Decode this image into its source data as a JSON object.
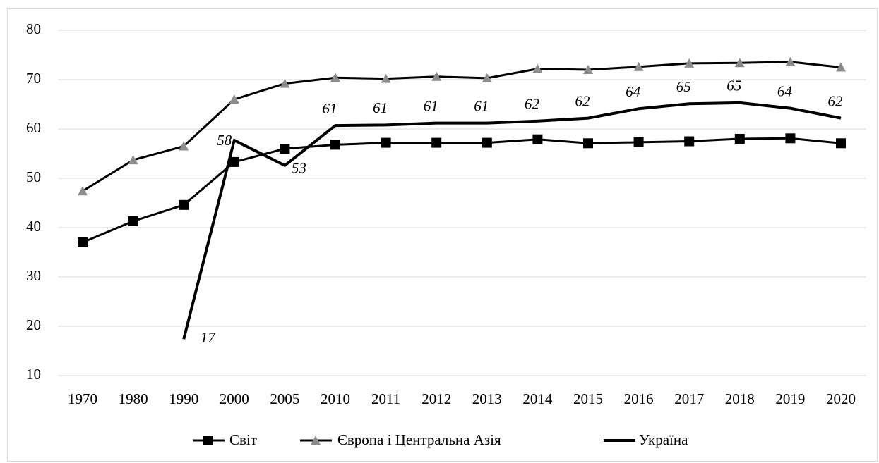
{
  "chart_data": {
    "type": "line",
    "categories": [
      "1970",
      "1980",
      "1990",
      "2000",
      "2005",
      "2010",
      "2011",
      "2012",
      "2013",
      "2014",
      "2015",
      "2016",
      "2017",
      "2018",
      "2019",
      "2020"
    ],
    "series": [
      {
        "name": "Світ",
        "color": "#000000",
        "marker": "square",
        "values": [
          37,
          41.3,
          44.6,
          53.3,
          56,
          56.8,
          57.2,
          57.2,
          57.2,
          57.9,
          57.1,
          57.3,
          57.5,
          58,
          58.1,
          57.1
        ]
      },
      {
        "name": "Європа і Центральна  Азія",
        "color": "#8c8c8c",
        "marker": "triangle",
        "values": [
          47.4,
          53.7,
          56.5,
          66,
          69.2,
          70.4,
          70.2,
          70.6,
          70.3,
          72.2,
          72,
          72.6,
          73.3,
          73.4,
          73.6,
          72.5
        ]
      },
      {
        "name": "Україна",
        "color": "#000000",
        "marker": "none",
        "values": [
          null,
          null,
          17.4,
          57.7,
          52.6,
          60.7,
          60.8,
          61.2,
          61.2,
          61.6,
          62.2,
          64.1,
          65.1,
          65.3,
          64.2,
          62.2
        ],
        "value_labels": [
          null,
          null,
          "17",
          "58",
          "53",
          "61",
          "61",
          "61",
          "61",
          "62",
          "62",
          "64",
          "65",
          "65",
          "64",
          "62"
        ]
      }
    ],
    "ylim": [
      10,
      80
    ],
    "yticks": [
      10,
      20,
      30,
      40,
      50,
      60,
      70,
      80
    ],
    "grid": true,
    "legend": "bottom"
  }
}
